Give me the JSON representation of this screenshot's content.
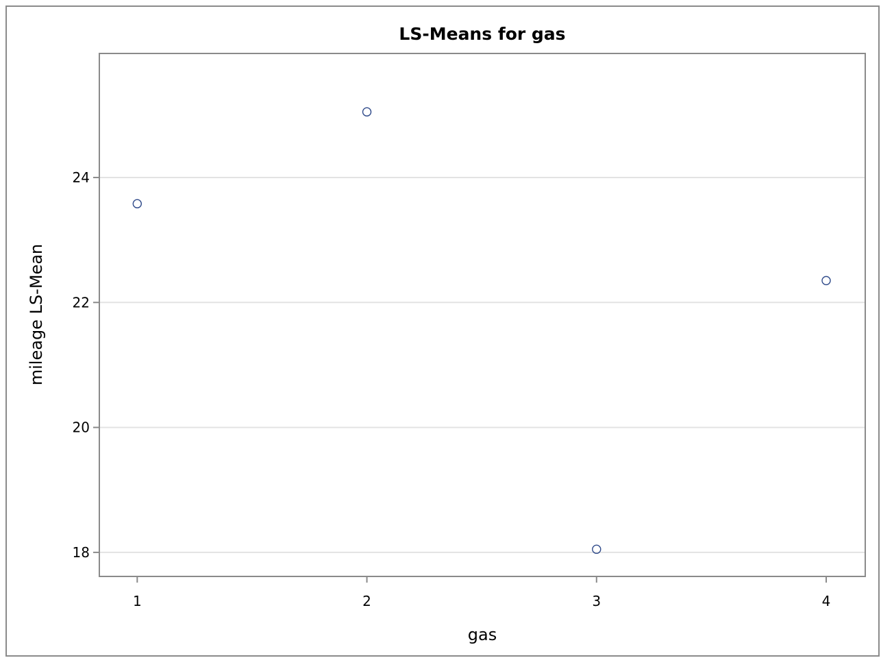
{
  "chart_data": {
    "type": "scatter",
    "title": "LS-Means for gas",
    "xlabel": "gas",
    "ylabel": "mileage LS-Mean",
    "x_ticks": [
      "1",
      "2",
      "3",
      "4"
    ],
    "y_ticks": [
      18,
      20,
      22,
      24
    ],
    "xlim": [
      0.835,
      4.17
    ],
    "ylim": [
      17.615,
      25.985
    ],
    "grid": true,
    "legend": "none",
    "marker_color": "#2f4a8a",
    "series": [
      {
        "x": [
          1,
          2,
          3,
          4
        ],
        "y": [
          23.58,
          25.05,
          18.05,
          22.35
        ]
      }
    ]
  }
}
